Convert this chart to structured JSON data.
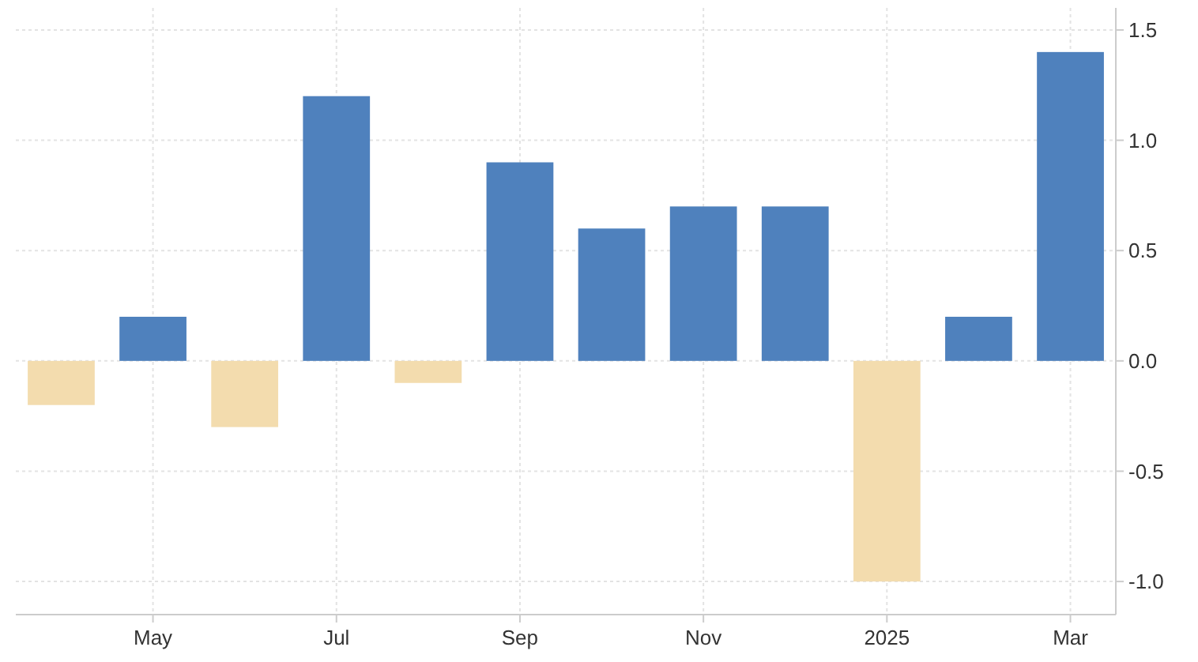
{
  "chart_data": {
    "type": "bar",
    "categories": [
      null,
      "May",
      null,
      "Jul",
      null,
      "Sep",
      null,
      "Nov",
      null,
      "2025",
      null,
      "Mar"
    ],
    "values": [
      -0.2,
      0.2,
      -0.3,
      1.2,
      -0.1,
      0.9,
      0.6,
      0.7,
      0.7,
      -1.0,
      0.2,
      1.4
    ],
    "colors": [
      "#f3dcae",
      "#4f81bd",
      "#f3dcae",
      "#4f81bd",
      "#f3dcae",
      "#4f81bd",
      "#4f81bd",
      "#4f81bd",
      "#4f81bd",
      "#f3dcae",
      "#4f81bd",
      "#4f81bd"
    ],
    "ylim": [
      -1.15,
      1.6
    ],
    "yticks": [
      {
        "value": -1,
        "label": "-1.0"
      },
      {
        "value": -0.5,
        "label": "-0.5"
      },
      {
        "value": 0,
        "label": "0.0"
      },
      {
        "value": 0.5,
        "label": "0.5"
      },
      {
        "value": 1,
        "label": "1.0"
      },
      {
        "value": 1.5,
        "label": "1.5"
      }
    ],
    "grid": true
  }
}
